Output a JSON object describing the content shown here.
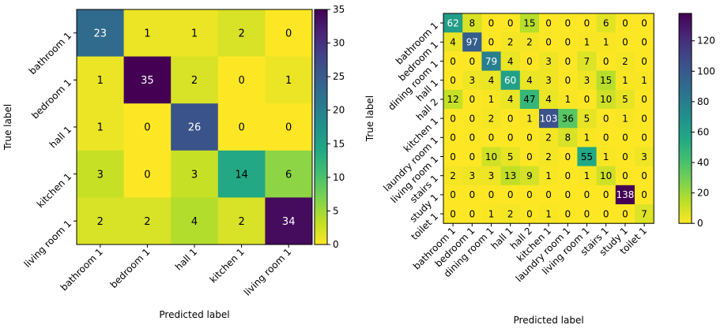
{
  "chart_data": [
    {
      "type": "heatmap",
      "xlabel": "Predicted label",
      "ylabel": "True label",
      "x_categories": [
        "bathroom 1",
        "bedroom 1",
        "hall 1",
        "kitchen 1",
        "living room 1"
      ],
      "y_categories": [
        "bathroom 1",
        "bedroom 1",
        "hall 1",
        "kitchen 1",
        "living room 1"
      ],
      "values": [
        [
          23,
          1,
          1,
          2,
          0
        ],
        [
          1,
          35,
          2,
          0,
          1
        ],
        [
          1,
          0,
          26,
          0,
          0
        ],
        [
          3,
          0,
          3,
          14,
          6
        ],
        [
          2,
          2,
          4,
          2,
          34
        ]
      ],
      "colorscale": "viridis_r",
      "vmin": 0,
      "vmax": 35,
      "colorbar_ticks": [
        0,
        5,
        10,
        15,
        20,
        25,
        30,
        35
      ]
    },
    {
      "type": "heatmap",
      "xlabel": "Predicted label",
      "ylabel": "True label",
      "x_categories": [
        "bathroom 1",
        "bedroom 1",
        "dining room 1",
        "hall 1",
        "hall 2",
        "kitchen 1",
        "laundry room 1",
        "living room 1",
        "stairs 1",
        "study 1",
        "toilet 1"
      ],
      "y_categories": [
        "bathroom 1",
        "bedroom 1",
        "dining room 1",
        "hall 1",
        "hall 2",
        "kitchen 1",
        "laundry room 1",
        "living room 1",
        "stairs 1",
        "study 1",
        "toilet 1"
      ],
      "values": [
        [
          62,
          8,
          0,
          0,
          15,
          0,
          0,
          0,
          6,
          0,
          0
        ],
        [
          4,
          97,
          0,
          2,
          2,
          0,
          0,
          1,
          1,
          0,
          0
        ],
        [
          0,
          0,
          79,
          4,
          0,
          3,
          0,
          7,
          0,
          2,
          0
        ],
        [
          0,
          3,
          4,
          60,
          4,
          3,
          0,
          3,
          15,
          1,
          1
        ],
        [
          12,
          0,
          1,
          4,
          47,
          4,
          1,
          0,
          10,
          5,
          0
        ],
        [
          0,
          0,
          2,
          0,
          1,
          103,
          36,
          5,
          0,
          1,
          0
        ],
        [
          0,
          0,
          0,
          0,
          0,
          2,
          8,
          1,
          0,
          0,
          0
        ],
        [
          0,
          0,
          10,
          5,
          0,
          2,
          0,
          55,
          1,
          0,
          3
        ],
        [
          2,
          3,
          3,
          13,
          9,
          1,
          0,
          1,
          10,
          0,
          0
        ],
        [
          0,
          0,
          0,
          0,
          0,
          0,
          0,
          0,
          0,
          138,
          0
        ],
        [
          0,
          0,
          1,
          2,
          0,
          1,
          0,
          0,
          0,
          0,
          7
        ]
      ],
      "colorscale": "viridis_r",
      "vmin": 0,
      "vmax": 138,
      "colorbar_ticks": [
        0,
        20,
        40,
        60,
        80,
        100,
        120
      ]
    }
  ]
}
